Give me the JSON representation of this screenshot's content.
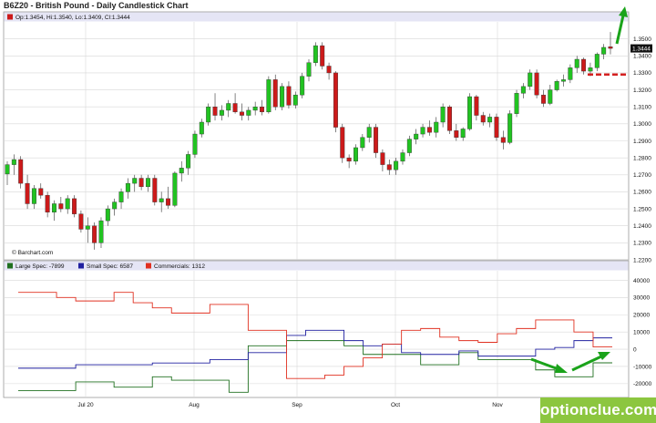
{
  "title": "B6Z20 - British Pound - Daily Candlestick Chart",
  "ohlc_readout": "Op:1.3454, Hi:1.3540, Lo:1.3409, Cl:1.3444",
  "last_price_label": "1.3444",
  "source_label": "© Barchart.com",
  "watermark": "optionclue.com",
  "colors": {
    "up": "#21c321",
    "down": "#cc1a1a",
    "grid": "#d8d8d8",
    "header_bg": "#e5e5f5",
    "large_spec": "#207020",
    "small_spec": "#2020a0",
    "commercials": "#e03020",
    "arrow": "#1aa31a",
    "level_line": "#d42020",
    "brand_bg": "#8cc63f"
  },
  "chart_data": [
    {
      "type": "candlestick",
      "title": "B6Z20 - British Pound - Daily Candlestick Chart",
      "ylim": [
        1.22,
        1.36
      ],
      "y_ticks": [
        "1.2200",
        "1.2300",
        "1.2400",
        "1.2500",
        "1.2600",
        "1.2700",
        "1.2800",
        "1.2900",
        "1.3000",
        "1.3100",
        "1.3200",
        "1.3300",
        "1.3400",
        "1.3500"
      ],
      "x_ticks": [
        "Jul 20",
        "Aug",
        "Sep",
        "Oct",
        "Nov"
      ],
      "last_price": 1.3444,
      "level_line": 1.329,
      "candles": [
        [
          1.2705,
          1.278,
          1.264,
          1.276
        ],
        [
          1.276,
          1.282,
          1.27,
          1.279
        ],
        [
          1.279,
          1.281,
          1.262,
          1.265
        ],
        [
          1.265,
          1.27,
          1.25,
          1.253
        ],
        [
          1.253,
          1.264,
          1.25,
          1.262
        ],
        [
          1.262,
          1.265,
          1.256,
          1.258
        ],
        [
          1.258,
          1.26,
          1.245,
          1.248
        ],
        [
          1.248,
          1.255,
          1.243,
          1.253
        ],
        [
          1.253,
          1.257,
          1.248,
          1.25
        ],
        [
          1.25,
          1.258,
          1.247,
          1.256
        ],
        [
          1.256,
          1.258,
          1.245,
          1.247
        ],
        [
          1.247,
          1.249,
          1.236,
          1.238
        ],
        [
          1.238,
          1.245,
          1.23,
          1.24
        ],
        [
          1.24,
          1.242,
          1.226,
          1.23
        ],
        [
          1.23,
          1.245,
          1.227,
          1.243
        ],
        [
          1.243,
          1.252,
          1.24,
          1.25
        ],
        [
          1.25,
          1.256,
          1.246,
          1.254
        ],
        [
          1.254,
          1.262,
          1.25,
          1.26
        ],
        [
          1.26,
          1.268,
          1.256,
          1.265
        ],
        [
          1.265,
          1.27,
          1.26,
          1.268
        ],
        [
          1.268,
          1.27,
          1.261,
          1.263
        ],
        [
          1.263,
          1.27,
          1.26,
          1.268
        ],
        [
          1.268,
          1.27,
          1.252,
          1.254
        ],
        [
          1.254,
          1.26,
          1.248,
          1.256
        ],
        [
          1.256,
          1.263,
          1.25,
          1.252
        ],
        [
          1.252,
          1.272,
          1.251,
          1.271
        ],
        [
          1.271,
          1.278,
          1.266,
          1.274
        ],
        [
          1.274,
          1.284,
          1.27,
          1.282
        ],
        [
          1.282,
          1.296,
          1.28,
          1.294
        ],
        [
          1.294,
          1.303,
          1.292,
          1.301
        ],
        [
          1.301,
          1.312,
          1.299,
          1.31
        ],
        [
          1.31,
          1.318,
          1.302,
          1.305
        ],
        [
          1.305,
          1.311,
          1.302,
          1.308
        ],
        [
          1.308,
          1.314,
          1.304,
          1.312
        ],
        [
          1.312,
          1.318,
          1.306,
          1.307
        ],
        [
          1.307,
          1.312,
          1.302,
          1.305
        ],
        [
          1.305,
          1.31,
          1.302,
          1.308
        ],
        [
          1.308,
          1.313,
          1.305,
          1.31
        ],
        [
          1.31,
          1.314,
          1.305,
          1.307
        ],
        [
          1.307,
          1.328,
          1.306,
          1.326
        ],
        [
          1.326,
          1.329,
          1.308,
          1.31
        ],
        [
          1.31,
          1.324,
          1.308,
          1.322
        ],
        [
          1.322,
          1.325,
          1.309,
          1.311
        ],
        [
          1.311,
          1.319,
          1.309,
          1.317
        ],
        [
          1.317,
          1.33,
          1.315,
          1.328
        ],
        [
          1.328,
          1.338,
          1.325,
          1.336
        ],
        [
          1.336,
          1.348,
          1.334,
          1.346
        ],
        [
          1.346,
          1.348,
          1.332,
          1.334
        ],
        [
          1.334,
          1.336,
          1.326,
          1.33
        ],
        [
          1.33,
          1.331,
          1.295,
          1.298
        ],
        [
          1.298,
          1.3,
          1.277,
          1.28
        ],
        [
          1.28,
          1.282,
          1.274,
          1.278
        ],
        [
          1.278,
          1.288,
          1.276,
          1.286
        ],
        [
          1.286,
          1.294,
          1.284,
          1.292
        ],
        [
          1.292,
          1.3,
          1.289,
          1.298
        ],
        [
          1.298,
          1.3,
          1.28,
          1.283
        ],
        [
          1.283,
          1.285,
          1.272,
          1.276
        ],
        [
          1.276,
          1.279,
          1.27,
          1.273
        ],
        [
          1.273,
          1.28,
          1.27,
          1.278
        ],
        [
          1.278,
          1.285,
          1.276,
          1.283
        ],
        [
          1.283,
          1.293,
          1.281,
          1.291
        ],
        [
          1.291,
          1.297,
          1.288,
          1.294
        ],
        [
          1.294,
          1.3,
          1.292,
          1.298
        ],
        [
          1.298,
          1.302,
          1.293,
          1.295
        ],
        [
          1.295,
          1.304,
          1.292,
          1.301
        ],
        [
          1.301,
          1.312,
          1.298,
          1.31
        ],
        [
          1.31,
          1.311,
          1.294,
          1.296
        ],
        [
          1.296,
          1.3,
          1.29,
          1.292
        ],
        [
          1.292,
          1.298,
          1.29,
          1.297
        ],
        [
          1.297,
          1.318,
          1.296,
          1.316
        ],
        [
          1.316,
          1.317,
          1.302,
          1.305
        ],
        [
          1.305,
          1.307,
          1.299,
          1.301
        ],
        [
          1.301,
          1.306,
          1.298,
          1.304
        ],
        [
          1.304,
          1.306,
          1.29,
          1.292
        ],
        [
          1.292,
          1.296,
          1.285,
          1.289
        ],
        [
          1.289,
          1.308,
          1.288,
          1.306
        ],
        [
          1.306,
          1.32,
          1.304,
          1.318
        ],
        [
          1.318,
          1.324,
          1.315,
          1.322
        ],
        [
          1.322,
          1.332,
          1.32,
          1.33
        ],
        [
          1.33,
          1.332,
          1.315,
          1.317
        ],
        [
          1.317,
          1.32,
          1.31,
          1.312
        ],
        [
          1.312,
          1.323,
          1.311,
          1.32
        ],
        [
          1.32,
          1.326,
          1.319,
          1.325
        ],
        [
          1.325,
          1.329,
          1.322,
          1.326
        ],
        [
          1.326,
          1.335,
          1.324,
          1.333
        ],
        [
          1.333,
          1.34,
          1.33,
          1.338
        ],
        [
          1.338,
          1.339,
          1.329,
          1.331
        ],
        [
          1.331,
          1.336,
          1.328,
          1.333
        ],
        [
          1.333,
          1.342,
          1.331,
          1.341
        ],
        [
          1.341,
          1.347,
          1.338,
          1.345
        ],
        [
          1.3454,
          1.354,
          1.3409,
          1.3444
        ]
      ]
    },
    {
      "type": "line",
      "title": "",
      "ylim": [
        -28000,
        45000
      ],
      "y_ticks": [
        "40000",
        "30000",
        "20000",
        "10000",
        "0",
        "-10000",
        "-20000"
      ],
      "x_ticks": [
        "Jul 20",
        "Aug",
        "Sep",
        "Oct",
        "Nov"
      ],
      "legend_placement": "top-left",
      "series": [
        {
          "name": "Large Spec: -7899",
          "step": true,
          "values": [
            -24000,
            -24000,
            -24000,
            -19000,
            -19000,
            -22000,
            -22000,
            -16000,
            -18000,
            -18000,
            -18000,
            -25000,
            2000,
            2000,
            5000,
            5000,
            5000,
            2000,
            -3000,
            -3000,
            -3000,
            -9000,
            -9000,
            -2000,
            -6000,
            -6000,
            -6000,
            -12000,
            -16000,
            -16000,
            -7899
          ]
        },
        {
          "name": "Small Spec: 6587",
          "step": true,
          "values": [
            -11000,
            -11000,
            -11000,
            -9000,
            -9000,
            -9000,
            -9000,
            -8000,
            -8000,
            -8000,
            -6000,
            -6000,
            -2000,
            -2000,
            8000,
            11000,
            11000,
            5000,
            2000,
            3000,
            -2000,
            -3000,
            -3000,
            -1000,
            -4000,
            -4000,
            -4000,
            0,
            1000,
            5000,
            6587
          ]
        },
        {
          "name": "Commercials: 1312",
          "step": true,
          "values": [
            33000,
            33000,
            30000,
            28000,
            28000,
            33000,
            27000,
            24000,
            21000,
            21000,
            26000,
            26000,
            11000,
            11000,
            -17000,
            -17000,
            -15000,
            -10000,
            -5000,
            3000,
            11000,
            12000,
            7000,
            5000,
            4000,
            9000,
            12000,
            17000,
            17000,
            10000,
            1312
          ]
        }
      ]
    }
  ]
}
